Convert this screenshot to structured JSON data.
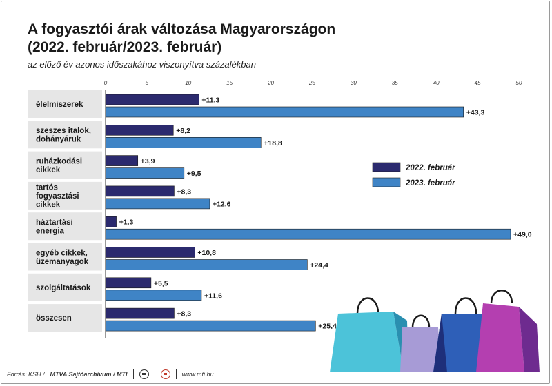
{
  "title_line1": "A fogyasztói árak változása Magyarországon",
  "title_line2": "(2022. február/2023. február)",
  "subtitle": "az előző év azonos időszakához viszonyítva százalékban",
  "footer": {
    "source": "Forrás: KSH /",
    "agency": "MTVA Sajtóarchívum / MTI",
    "website": "www.mti.hu"
  },
  "colors": {
    "series_2022": "#2b2a6e",
    "series_2023": "#3f84c6",
    "row_band": "#e6e6e6"
  },
  "chart_data": {
    "type": "bar",
    "orientation": "horizontal",
    "title": "A fogyasztói árak változása Magyarországon (2022. február/2023. február)",
    "subtitle": "az előző év azonos időszakához viszonyítva százalékban",
    "categories": [
      [
        "élelmiszerek"
      ],
      [
        "szeszes italok,",
        "dohányáruk"
      ],
      [
        "ruházkodási",
        "cikkek"
      ],
      [
        "tartós",
        "fogyasztási",
        "cikkek"
      ],
      [
        "háztartási",
        "energia"
      ],
      [
        "egyéb cikkek,",
        "üzemanyagok"
      ],
      [
        "szolgáltatások"
      ],
      [
        "összesen"
      ]
    ],
    "series": [
      {
        "name": "2022. február",
        "values": [
          11.3,
          8.2,
          3.9,
          8.3,
          1.3,
          10.8,
          5.5,
          8.3
        ],
        "labels": [
          "+11,3",
          "+8,2",
          "+3,9",
          "+8,3",
          "+1,3",
          "+10,8",
          "+5,5",
          "+8,3"
        ]
      },
      {
        "name": "2023. február",
        "values": [
          43.3,
          18.8,
          9.5,
          12.6,
          49.0,
          24.4,
          11.6,
          25.4
        ],
        "labels": [
          "+43,3",
          "+18,8",
          "+9,5",
          "+12,6",
          "+49,0",
          "+24,4",
          "+11,6",
          "+25,4"
        ]
      }
    ],
    "xlim": [
      0,
      50
    ],
    "xticks": [
      0,
      5,
      10,
      15,
      20,
      25,
      30,
      35,
      40,
      45,
      50
    ],
    "legend_position": "right-middle",
    "grid": false
  }
}
